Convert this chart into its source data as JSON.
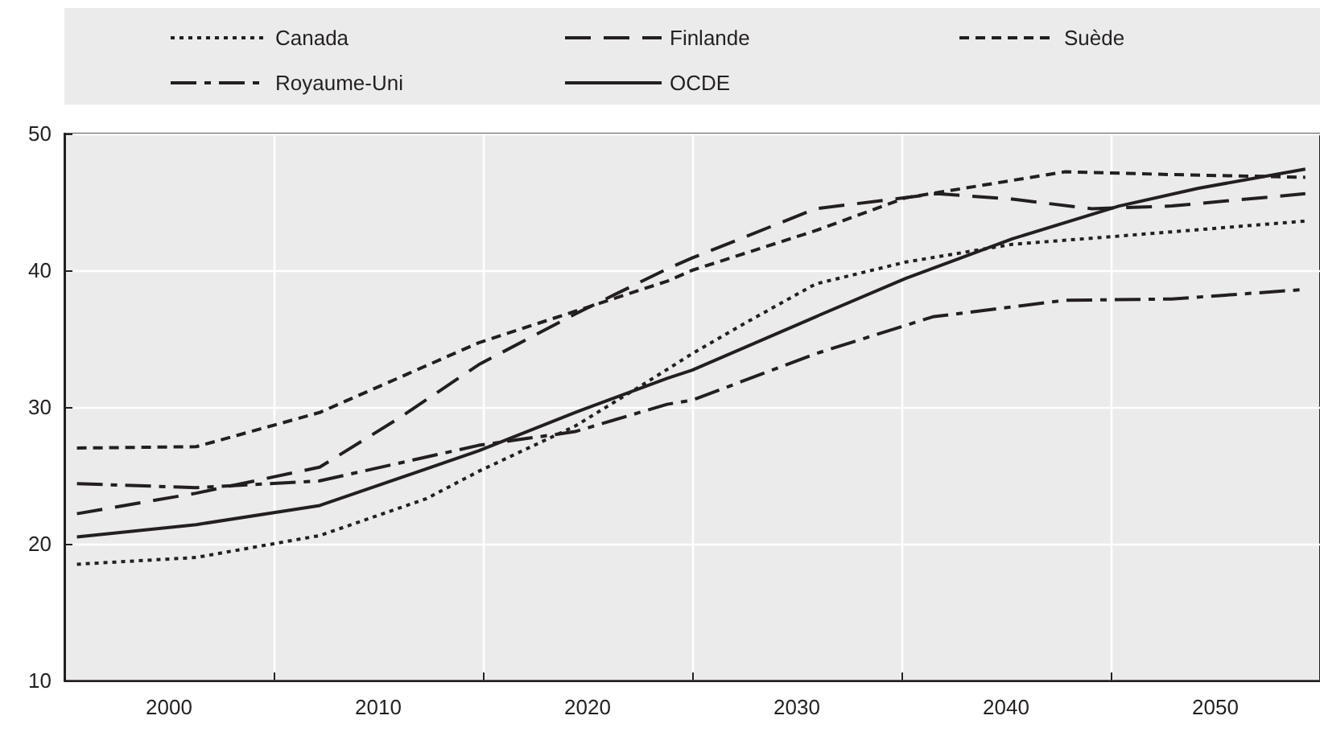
{
  "chart_data": {
    "type": "line",
    "series": [
      {
        "name": "Canada",
        "color": "#231f20",
        "line_style": "dotted",
        "x": [
          1995.6,
          2001.3,
          2007.2,
          2012.3,
          2014.8,
          2019.4,
          2022.5,
          2025,
          2027.6,
          2030.9,
          2035.2,
          2040.3,
          2045.4,
          2054.3
        ],
        "values": [
          18.5,
          19.0,
          20.6,
          23.3,
          25.3,
          28.6,
          31.5,
          33.9,
          36.2,
          39.0,
          40.6,
          41.9,
          42.5,
          43.6
        ]
      },
      {
        "name": "Finlande",
        "color": "#231f20",
        "line_style": "longdashed",
        "x": [
          1995.6,
          2001.3,
          2007.2,
          2011,
          2014.8,
          2019.4,
          2023.8,
          2025,
          2030.9,
          2036.7,
          2040.3,
          2044.1,
          2047.9,
          2054.3
        ],
        "values": [
          22.2,
          23.7,
          25.6,
          29.2,
          33.1,
          36.8,
          40.1,
          40.9,
          44.5,
          45.6,
          45.2,
          44.5,
          44.7,
          45.6
        ]
      },
      {
        "name": "Suède",
        "color": "#231f20",
        "line_style": "dashed",
        "x": [
          1995.6,
          2001.3,
          2007.2,
          2014.8,
          2019.4,
          2023.8,
          2025,
          2030.9,
          2035.2,
          2042.8,
          2047.9,
          2054.3
        ],
        "values": [
          27.0,
          27.1,
          29.6,
          34.7,
          37.0,
          39.2,
          40.0,
          42.9,
          45.3,
          47.2,
          47.0,
          46.8
        ]
      },
      {
        "name": "Royaume-Uni",
        "color": "#231f20",
        "line_style": "dashdot",
        "x": [
          1995.6,
          2001.3,
          2007.2,
          2014.8,
          2019.4,
          2023.8,
          2025,
          2030.9,
          2036.5,
          2042.8,
          2047.9,
          2054.3
        ],
        "values": [
          24.4,
          24.1,
          24.6,
          27.2,
          28.2,
          30.2,
          30.5,
          33.9,
          36.6,
          37.8,
          37.9,
          38.6
        ]
      },
      {
        "name": "OCDE",
        "color": "#231f20",
        "line_style": "solid",
        "x": [
          1995.6,
          2001.3,
          2007.2,
          2014.8,
          2019.4,
          2023.8,
          2025,
          2030.9,
          2035.2,
          2040.3,
          2045.4,
          2049.2,
          2054.3
        ],
        "values": [
          20.5,
          21.4,
          22.8,
          26.8,
          29.6,
          32.1,
          32.7,
          36.6,
          39.4,
          42.3,
          44.7,
          46.0,
          47.4
        ]
      }
    ],
    "xlim": [
      1995,
      2055
    ],
    "xticks": [
      {
        "value": 2000,
        "label": "2000"
      },
      {
        "value": 2005,
        "label": null
      },
      {
        "value": 2010,
        "label": "2010"
      },
      {
        "value": 2015,
        "label": null
      },
      {
        "value": 2020,
        "label": "2020"
      },
      {
        "value": 2025,
        "label": null
      },
      {
        "value": 2030,
        "label": "2030"
      },
      {
        "value": 2035,
        "label": null
      },
      {
        "value": 2040,
        "label": "2040"
      },
      {
        "value": 2045,
        "label": null
      },
      {
        "value": 2050,
        "label": "2050"
      }
    ],
    "ylim": [
      10,
      50
    ],
    "yticks": [
      10,
      20,
      30,
      40,
      50
    ],
    "grid": true,
    "legend": "top",
    "marker": "none"
  }
}
